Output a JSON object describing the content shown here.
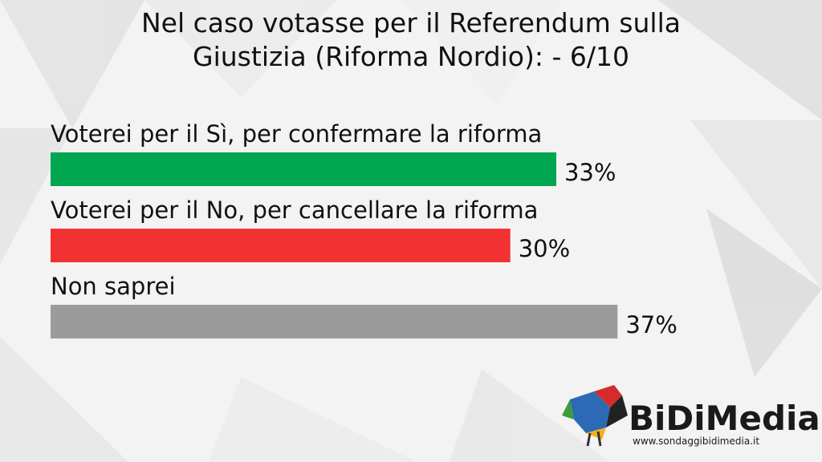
{
  "chart_data": {
    "type": "bar",
    "orientation": "horizontal",
    "title": "Nel caso votasse per il Referendum sulla Giustizia (Riforma Nordio): - 6/10",
    "categories": [
      "Voterei per il Sì, per confermare la riforma",
      "Voterei per il No, per cancellare la riforma",
      "Non saprei"
    ],
    "values": [
      33,
      30,
      37
    ],
    "value_labels": [
      "33%",
      "30%",
      "37%"
    ],
    "colors": [
      "#00a650",
      "#f23232",
      "#9b9b9b"
    ]
  },
  "logo": {
    "name": "BiDiMedia",
    "url": "www.sondaggibidimedia.it"
  }
}
